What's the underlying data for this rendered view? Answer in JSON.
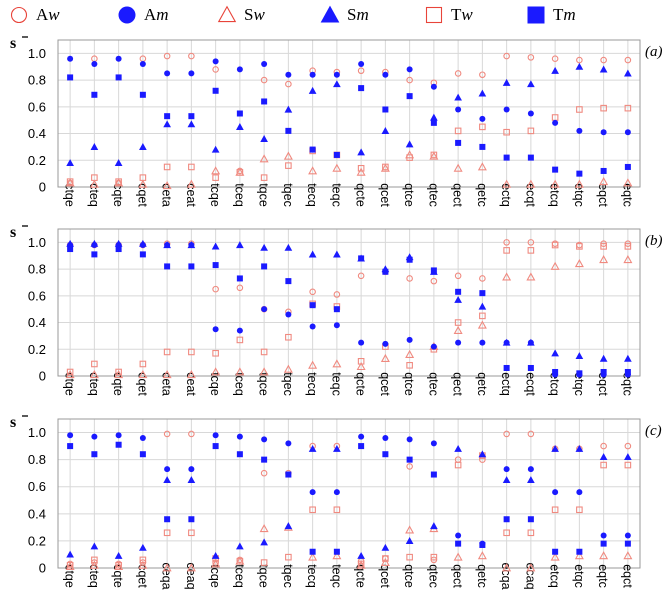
{
  "legend": [
    {
      "name": "Aw",
      "base": "A",
      "sub": "w",
      "shape": "circle",
      "filled": false,
      "color": "#e8443a"
    },
    {
      "name": "Am",
      "base": "A",
      "sub": "m",
      "shape": "circle",
      "filled": true,
      "color": "#1a1aff"
    },
    {
      "name": "Sw",
      "base": "S",
      "sub": "w",
      "shape": "triangle",
      "filled": false,
      "color": "#e8443a"
    },
    {
      "name": "Sm",
      "base": "S",
      "sub": "m",
      "shape": "triangle",
      "filled": true,
      "color": "#1a1aff"
    },
    {
      "name": "Tw",
      "base": "T",
      "sub": "w",
      "shape": "square",
      "filled": false,
      "color": "#e8443a"
    },
    {
      "name": "Tm",
      "base": "T",
      "sub": "m",
      "shape": "square",
      "filled": true,
      "color": "#1a1aff"
    }
  ],
  "colors": {
    "w": "#f08a80",
    "m": "#1a1aff",
    "legend_w": "#e8443a",
    "grid": "#d8d8d8",
    "frame": "#999999"
  },
  "chart_data": [
    {
      "type": "scatter",
      "panel": "(a)",
      "ylabel": "s",
      "ylim": [
        0,
        1.1
      ],
      "yticks": [
        "0",
        "0.2",
        "0.4",
        "0.6",
        "0.8",
        "1.0"
      ],
      "grid": true,
      "categories": [
        "ctqe",
        "cteq",
        "cqte",
        "cqet",
        "ceta",
        "ceat",
        "tcqe",
        "tceq",
        "tqce",
        "tqec",
        "tecq",
        "teqc",
        "qcte",
        "qcet",
        "qtce",
        "qtec",
        "qect",
        "qetc",
        "ectq",
        "ecqt",
        "etcq",
        "etqc",
        "eqct",
        "eqtc"
      ],
      "series": [
        {
          "name": "Aw",
          "values": [
            0.03,
            0.96,
            0.03,
            0.96,
            0.98,
            0.98,
            0.88,
            0.12,
            0.8,
            0.77,
            0.87,
            0.86,
            0.87,
            0.86,
            0.8,
            0.78,
            0.85,
            0.84,
            0.98,
            0.97,
            0.96,
            0.95,
            0.95,
            0.95
          ]
        },
        {
          "name": "Am",
          "values": [
            0.96,
            0.92,
            0.96,
            0.92,
            0.85,
            0.85,
            0.94,
            0.88,
            0.92,
            0.84,
            0.84,
            0.84,
            0.92,
            0.84,
            0.88,
            0.75,
            0.58,
            0.51,
            0.58,
            0.55,
            0.48,
            0.42,
            0.41,
            0.41
          ]
        },
        {
          "name": "Sw",
          "values": [
            0.03,
            0.02,
            0.03,
            0.02,
            0.01,
            0.02,
            0.12,
            0.11,
            0.21,
            0.23,
            0.12,
            0.14,
            0.11,
            0.14,
            0.24,
            0.23,
            0.14,
            0.15,
            0.02,
            0.02,
            0.02,
            0.02,
            0.04,
            0.03
          ]
        },
        {
          "name": "Sm",
          "values": [
            0.18,
            0.3,
            0.18,
            0.3,
            0.47,
            0.47,
            0.28,
            0.45,
            0.36,
            0.58,
            0.72,
            0.77,
            0.26,
            0.42,
            0.32,
            0.52,
            0.67,
            0.7,
            0.78,
            0.77,
            0.87,
            0.9,
            0.88,
            0.85
          ]
        },
        {
          "name": "Tw",
          "values": [
            0.04,
            0.07,
            0.04,
            0.07,
            0.15,
            0.15,
            0.07,
            0.11,
            0.07,
            0.16,
            0.27,
            0.24,
            0.14,
            0.15,
            0.22,
            0.24,
            0.42,
            0.45,
            0.41,
            0.42,
            0.52,
            0.58,
            0.59,
            0.59
          ]
        },
        {
          "name": "Tm",
          "values": [
            0.82,
            0.69,
            0.82,
            0.69,
            0.53,
            0.53,
            0.72,
            0.55,
            0.64,
            0.42,
            0.28,
            0.24,
            0.74,
            0.58,
            0.68,
            0.48,
            0.33,
            0.3,
            0.22,
            0.22,
            0.13,
            0.1,
            0.12,
            0.15
          ]
        }
      ]
    },
    {
      "type": "scatter",
      "panel": "(b)",
      "ylabel": "s",
      "ylim": [
        0,
        1.1
      ],
      "yticks": [
        "0",
        "0.2",
        "0.4",
        "0.6",
        "0.8",
        "1.0"
      ],
      "grid": true,
      "categories": [
        "ctqe",
        "cteq",
        "cqte",
        "cqet",
        "ceta",
        "ceat",
        "tcqe",
        "tceq",
        "tqce",
        "tqec",
        "tecq",
        "teqc",
        "qcte",
        "qcet",
        "qtce",
        "qtec",
        "qect",
        "qetc",
        "ectq",
        "ecqt",
        "etcq",
        "etqc",
        "eqct",
        "eqtc"
      ],
      "series": [
        {
          "name": "Aw",
          "values": [
            0.98,
            0.98,
            0.98,
            0.98,
            0.99,
            0.99,
            0.65,
            0.66,
            0.5,
            0.48,
            0.63,
            0.61,
            0.75,
            0.78,
            0.73,
            0.71,
            0.75,
            0.73,
            1.0,
            1.0,
            0.99,
            0.98,
            0.99,
            0.99
          ]
        },
        {
          "name": "Am",
          "values": [
            0.98,
            0.98,
            0.98,
            0.98,
            0.98,
            0.98,
            0.35,
            0.34,
            0.5,
            0.46,
            0.37,
            0.38,
            0.25,
            0.24,
            0.27,
            0.22,
            0.25,
            0.25,
            0.25,
            0.25,
            0.01,
            0.01,
            0.01,
            0.01
          ]
        },
        {
          "name": "Sw",
          "values": [
            0.01,
            0.01,
            0.01,
            0.01,
            0.01,
            0.01,
            0.03,
            0.03,
            0.03,
            0.05,
            0.08,
            0.09,
            0.07,
            0.13,
            0.16,
            0.22,
            0.34,
            0.38,
            0.74,
            0.74,
            0.82,
            0.84,
            0.87,
            0.87
          ]
        },
        {
          "name": "Sm",
          "values": [
            0.99,
            0.99,
            0.99,
            0.99,
            0.98,
            0.98,
            0.97,
            0.98,
            0.96,
            0.96,
            0.91,
            0.91,
            0.88,
            0.8,
            0.89,
            0.78,
            0.57,
            0.52,
            0.25,
            0.25,
            0.17,
            0.15,
            0.13,
            0.13
          ]
        },
        {
          "name": "Tw",
          "values": [
            0.03,
            0.09,
            0.03,
            0.09,
            0.18,
            0.18,
            0.17,
            0.27,
            0.18,
            0.29,
            0.54,
            0.52,
            0.11,
            0.22,
            0.08,
            0.2,
            0.4,
            0.45,
            0.94,
            0.94,
            0.98,
            0.97,
            0.97,
            0.97
          ]
        },
        {
          "name": "Tm",
          "values": [
            0.95,
            0.91,
            0.95,
            0.91,
            0.82,
            0.82,
            0.83,
            0.73,
            0.82,
            0.71,
            0.53,
            0.5,
            0.88,
            0.78,
            0.87,
            0.79,
            0.63,
            0.62,
            0.06,
            0.06,
            0.03,
            0.02,
            0.03,
            0.03
          ]
        }
      ]
    },
    {
      "type": "scatter",
      "panel": "(c)",
      "ylabel": "s",
      "ylim": [
        0,
        1.1
      ],
      "yticks": [
        "0",
        "0.2",
        "0.4",
        "0.6",
        "0.8",
        "1.0"
      ],
      "grid": true,
      "categories": [
        "ctqe",
        "cteq",
        "cqte",
        "cqet",
        "ceqa",
        "ceaq",
        "tcqe",
        "tceq",
        "tqce",
        "tqec",
        "tecq",
        "teqc",
        "qcte",
        "qcet",
        "qtce",
        "qtec",
        "qect",
        "qetc",
        "ecqa",
        "ecaq",
        "etcq",
        "etqc",
        "eqtc",
        "eqct"
      ],
      "series": [
        {
          "name": "Aw",
          "values": [
            0.03,
            0.04,
            0.03,
            0.04,
            0.99,
            0.99,
            0.04,
            0.06,
            0.7,
            0.7,
            0.9,
            0.9,
            0.05,
            0.07,
            0.75,
            0.06,
            0.8,
            0.8,
            0.99,
            0.99,
            0.88,
            0.88,
            0.9,
            0.9
          ]
        },
        {
          "name": "Am",
          "values": [
            0.98,
            0.97,
            0.98,
            0.96,
            0.73,
            0.73,
            0.98,
            0.97,
            0.95,
            0.92,
            0.56,
            0.56,
            0.97,
            0.96,
            0.95,
            0.92,
            0.24,
            0.18,
            0.73,
            0.73,
            0.56,
            0.56,
            0.24,
            0.24
          ]
        },
        {
          "name": "Sw",
          "values": [
            0.01,
            0.02,
            0.01,
            0.02,
            0.0,
            0.0,
            0.03,
            0.05,
            0.29,
            0.3,
            0.08,
            0.09,
            0.02,
            0.04,
            0.28,
            0.29,
            0.08,
            0.09,
            0.0,
            0.0,
            0.08,
            0.09,
            0.09,
            0.09
          ]
        },
        {
          "name": "Sm",
          "values": [
            0.1,
            0.16,
            0.09,
            0.15,
            0.65,
            0.65,
            0.09,
            0.16,
            0.19,
            0.31,
            0.88,
            0.88,
            0.09,
            0.15,
            0.2,
            0.31,
            0.88,
            0.84,
            0.65,
            0.65,
            0.88,
            0.88,
            0.82,
            0.82
          ]
        },
        {
          "name": "Tw",
          "values": [
            0.02,
            0.06,
            0.02,
            0.06,
            0.26,
            0.26,
            0.07,
            0.05,
            0.04,
            0.08,
            0.43,
            0.43,
            0.03,
            0.07,
            0.08,
            0.08,
            0.76,
            0.83,
            0.26,
            0.26,
            0.43,
            0.43,
            0.76,
            0.76
          ]
        },
        {
          "name": "Tm",
          "values": [
            0.9,
            0.84,
            0.91,
            0.84,
            0.36,
            0.36,
            0.9,
            0.84,
            0.8,
            0.69,
            0.12,
            0.12,
            0.9,
            0.84,
            0.8,
            0.69,
            0.18,
            0.17,
            0.36,
            0.36,
            0.12,
            0.12,
            0.18,
            0.18
          ]
        }
      ]
    }
  ]
}
